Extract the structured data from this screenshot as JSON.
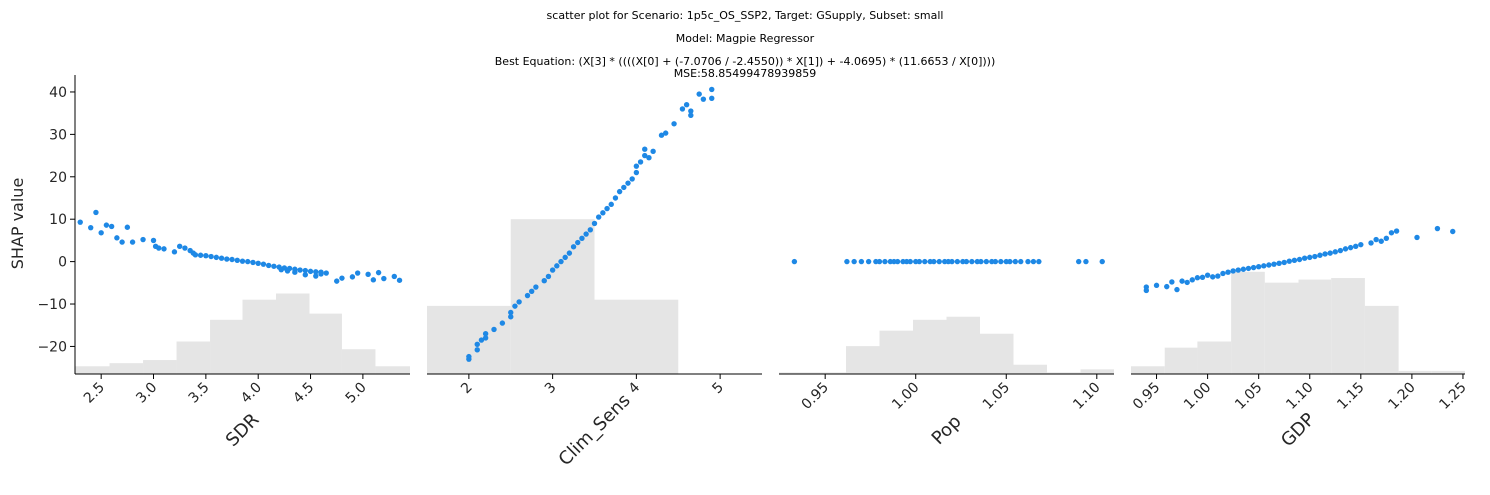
{
  "header": {
    "title_line1": "scatter plot for Scenario: 1p5c_OS_SSP2, Target: GSupply, Subset: small",
    "title_line2": "Model: Magpie Regressor",
    "title_line3": "Best Equation: (X[3] * ((((X[0] + (-7.0706 / -2.4550)) * X[1]) + -4.0695) * (11.6653 / X[0])))",
    "title_line4": "MSE:58.85499478939859"
  },
  "colors": {
    "points": "#1e88e5",
    "hist": "#e5e5e5",
    "axis": "#000000"
  },
  "chart_data": [
    {
      "type": "scatter",
      "xlabel": "SDR",
      "ylabel": "SHAP value",
      "xlim": [
        2.25,
        5.45
      ],
      "ylim": [
        -26.5,
        44
      ],
      "xticks": [
        2.5,
        3.0,
        3.5,
        4.0,
        4.5,
        5.0
      ],
      "xtick_labels": [
        "2.5",
        "3.0",
        "3.5",
        "4.0",
        "4.5",
        "5.0"
      ],
      "yticks": [
        -20,
        -10,
        0,
        10,
        20,
        30,
        40
      ],
      "ytick_labels": [
        "−20",
        "−10",
        "0",
        "10",
        "20",
        "30",
        "40"
      ],
      "points": [
        [
          2.3,
          9.3
        ],
        [
          2.4,
          8.0
        ],
        [
          2.45,
          11.6
        ],
        [
          2.5,
          6.8
        ],
        [
          2.55,
          8.6
        ],
        [
          2.6,
          8.3
        ],
        [
          2.65,
          5.6
        ],
        [
          2.7,
          4.6
        ],
        [
          2.8,
          4.6
        ],
        [
          2.75,
          8.1
        ],
        [
          2.9,
          5.2
        ],
        [
          3.0,
          5.0
        ],
        [
          3.02,
          3.6
        ],
        [
          3.05,
          3.2
        ],
        [
          3.1,
          3.0
        ],
        [
          3.2,
          2.3
        ],
        [
          3.25,
          3.6
        ],
        [
          3.3,
          3.2
        ],
        [
          3.35,
          2.6
        ],
        [
          3.38,
          2.0
        ],
        [
          3.4,
          1.6
        ],
        [
          3.45,
          1.5
        ],
        [
          3.5,
          1.4
        ],
        [
          3.55,
          1.2
        ],
        [
          3.6,
          1.0
        ],
        [
          3.65,
          0.8
        ],
        [
          3.7,
          0.6
        ],
        [
          3.75,
          0.5
        ],
        [
          3.8,
          0.3
        ],
        [
          3.85,
          0.1
        ],
        [
          3.9,
          0.0
        ],
        [
          3.95,
          -0.2
        ],
        [
          4.0,
          -0.4
        ],
        [
          4.05,
          -0.6
        ],
        [
          4.1,
          -0.9
        ],
        [
          4.15,
          -1.1
        ],
        [
          4.2,
          -1.3
        ],
        [
          4.25,
          -1.5
        ],
        [
          4.3,
          -1.6
        ],
        [
          4.35,
          -1.8
        ],
        [
          4.4,
          -2.0
        ],
        [
          4.45,
          -2.1
        ],
        [
          4.5,
          -2.3
        ],
        [
          4.55,
          -2.4
        ],
        [
          4.6,
          -2.5
        ],
        [
          4.65,
          -2.7
        ],
        [
          4.22,
          -1.9
        ],
        [
          4.28,
          -2.2
        ],
        [
          4.35,
          -2.5
        ],
        [
          4.45,
          -3.1
        ],
        [
          4.55,
          -3.4
        ],
        [
          4.6,
          -2.9
        ],
        [
          4.75,
          -4.6
        ],
        [
          4.8,
          -3.9
        ],
        [
          4.9,
          -3.6
        ],
        [
          4.95,
          -2.7
        ],
        [
          5.05,
          -3.0
        ],
        [
          5.1,
          -4.3
        ],
        [
          5.15,
          -2.6
        ],
        [
          5.2,
          -4.0
        ],
        [
          5.3,
          -3.5
        ],
        [
          5.35,
          -4.4
        ]
      ],
      "histogram": {
        "edges": [
          2.25,
          2.58,
          2.9,
          3.22,
          3.54,
          3.85,
          4.17,
          4.49,
          4.8,
          5.12,
          5.45
        ],
        "heights": [
          0.05,
          0.07,
          0.09,
          0.21,
          0.35,
          0.48,
          0.52,
          0.39,
          0.16,
          0.05
        ]
      }
    },
    {
      "type": "scatter",
      "xlabel": "Clim_Sens",
      "xlim": [
        1.5,
        5.5
      ],
      "ylim": [
        -26.5,
        44
      ],
      "xticks": [
        2,
        3,
        4,
        5
      ],
      "xtick_labels": [
        "2",
        "3",
        "4",
        "5"
      ],
      "points": [
        [
          2.0,
          -23.0
        ],
        [
          2.0,
          -22.4
        ],
        [
          2.1,
          -20.8
        ],
        [
          2.1,
          -19.5
        ],
        [
          2.15,
          -18.5
        ],
        [
          2.2,
          -18.0
        ],
        [
          2.2,
          -17.0
        ],
        [
          2.3,
          -16.0
        ],
        [
          2.4,
          -14.5
        ],
        [
          2.5,
          -13.0
        ],
        [
          2.5,
          -12.0
        ],
        [
          2.55,
          -10.5
        ],
        [
          2.6,
          -9.5
        ],
        [
          2.7,
          -8.0
        ],
        [
          2.75,
          -7.0
        ],
        [
          2.8,
          -6.0
        ],
        [
          2.9,
          -4.5
        ],
        [
          2.95,
          -3.5
        ],
        [
          3.0,
          -2.0
        ],
        [
          3.05,
          -1.0
        ],
        [
          3.1,
          0.0
        ],
        [
          3.15,
          1.0
        ],
        [
          3.2,
          2.0
        ],
        [
          3.25,
          3.5
        ],
        [
          3.3,
          4.5
        ],
        [
          3.35,
          5.5
        ],
        [
          3.4,
          6.5
        ],
        [
          3.45,
          7.5
        ],
        [
          3.5,
          9.0
        ],
        [
          3.55,
          10.5
        ],
        [
          3.6,
          11.5
        ],
        [
          3.65,
          12.5
        ],
        [
          3.7,
          13.5
        ],
        [
          3.75,
          15.0
        ],
        [
          3.8,
          16.5
        ],
        [
          3.85,
          17.5
        ],
        [
          3.9,
          18.5
        ],
        [
          3.95,
          19.5
        ],
        [
          4.0,
          21.0
        ],
        [
          4.0,
          22.5
        ],
        [
          4.05,
          23.5
        ],
        [
          4.1,
          25.0
        ],
        [
          4.1,
          26.5
        ],
        [
          4.15,
          24.5
        ],
        [
          4.2,
          26.0
        ],
        [
          4.3,
          29.8
        ],
        [
          4.35,
          30.3
        ],
        [
          4.45,
          32.5
        ],
        [
          4.55,
          36.0
        ],
        [
          4.6,
          37.0
        ],
        [
          4.65,
          34.5
        ],
        [
          4.65,
          35.5
        ],
        [
          4.75,
          39.5
        ],
        [
          4.8,
          38.3
        ],
        [
          4.9,
          40.6
        ],
        [
          4.9,
          38.5
        ]
      ],
      "histogram": {
        "edges": [
          1.5,
          2.5,
          3.5,
          4.5,
          5.5
        ],
        "heights": [
          0.44,
          1.0,
          0.48,
          0.0
        ]
      }
    },
    {
      "type": "scatter",
      "xlabel": "Pop",
      "xlim": [
        0.9245,
        1.1095
      ],
      "ylim": [
        -26.5,
        44
      ],
      "xticks": [
        0.95,
        1.0,
        1.05,
        1.1
      ],
      "xtick_labels": [
        "0.95",
        "1.00",
        "1.05",
        "1.10"
      ],
      "points": [
        [
          0.933,
          0
        ],
        [
          0.962,
          0
        ],
        [
          0.966,
          0
        ],
        [
          0.97,
          0
        ],
        [
          0.974,
          0
        ],
        [
          0.978,
          0
        ],
        [
          0.98,
          0
        ],
        [
          0.983,
          0
        ],
        [
          0.986,
          0
        ],
        [
          0.988,
          0
        ],
        [
          0.99,
          0
        ],
        [
          0.993,
          0
        ],
        [
          0.995,
          0
        ],
        [
          0.997,
          0
        ],
        [
          1.0,
          0
        ],
        [
          1.002,
          0
        ],
        [
          1.005,
          0
        ],
        [
          1.008,
          0
        ],
        [
          1.01,
          0
        ],
        [
          1.013,
          0
        ],
        [
          1.016,
          0
        ],
        [
          1.018,
          0
        ],
        [
          1.02,
          0
        ],
        [
          1.023,
          0
        ],
        [
          1.026,
          0
        ],
        [
          1.028,
          0
        ],
        [
          1.031,
          0
        ],
        [
          1.034,
          0
        ],
        [
          1.036,
          0
        ],
        [
          1.039,
          0
        ],
        [
          1.042,
          0
        ],
        [
          1.044,
          0
        ],
        [
          1.047,
          0
        ],
        [
          1.05,
          0
        ],
        [
          1.052,
          0
        ],
        [
          1.055,
          0
        ],
        [
          1.058,
          0
        ],
        [
          1.062,
          0
        ],
        [
          1.065,
          0
        ],
        [
          1.068,
          0
        ],
        [
          1.09,
          0
        ],
        [
          1.094,
          0
        ],
        [
          1.103,
          0
        ]
      ],
      "histogram": {
        "edges": [
          0.9245,
          0.943,
          0.9615,
          0.98,
          0.9985,
          1.017,
          1.0355,
          1.054,
          1.0725,
          1.091,
          1.1095
        ],
        "heights": [
          0.01,
          0.01,
          0.18,
          0.28,
          0.35,
          0.37,
          0.26,
          0.06,
          0.01,
          0.03
        ]
      }
    },
    {
      "type": "scatter",
      "xlabel": "GDP",
      "xlim": [
        0.925,
        1.252
      ],
      "ylim": [
        -26.5,
        44
      ],
      "xticks": [
        0.95,
        1.0,
        1.05,
        1.1,
        1.15,
        1.2,
        1.25
      ],
      "xtick_labels": [
        "0.95",
        "1.00",
        "1.05",
        "1.10",
        "1.15",
        "1.20",
        "1.25"
      ],
      "points": [
        [
          0.94,
          -6.8
        ],
        [
          0.94,
          -6.0
        ],
        [
          0.95,
          -5.6
        ],
        [
          0.96,
          -5.9
        ],
        [
          0.965,
          -4.8
        ],
        [
          0.97,
          -6.6
        ],
        [
          0.975,
          -4.6
        ],
        [
          0.98,
          -4.9
        ],
        [
          0.985,
          -4.3
        ],
        [
          0.99,
          -3.8
        ],
        [
          0.995,
          -3.7
        ],
        [
          1.0,
          -3.2
        ],
        [
          1.005,
          -3.6
        ],
        [
          1.01,
          -3.4
        ],
        [
          1.015,
          -2.8
        ],
        [
          1.02,
          -2.5
        ],
        [
          1.025,
          -2.2
        ],
        [
          1.03,
          -2.0
        ],
        [
          1.035,
          -1.8
        ],
        [
          1.04,
          -1.6
        ],
        [
          1.045,
          -1.4
        ],
        [
          1.05,
          -1.2
        ],
        [
          1.055,
          -1.0
        ],
        [
          1.06,
          -0.8
        ],
        [
          1.065,
          -0.6
        ],
        [
          1.07,
          -0.4
        ],
        [
          1.075,
          -0.2
        ],
        [
          1.08,
          0.1
        ],
        [
          1.085,
          0.3
        ],
        [
          1.09,
          0.5
        ],
        [
          1.095,
          0.8
        ],
        [
          1.1,
          1.0
        ],
        [
          1.105,
          1.2
        ],
        [
          1.11,
          1.5
        ],
        [
          1.115,
          1.8
        ],
        [
          1.12,
          2.0
        ],
        [
          1.125,
          2.3
        ],
        [
          1.13,
          2.6
        ],
        [
          1.135,
          3.0
        ],
        [
          1.14,
          3.3
        ],
        [
          1.145,
          3.6
        ],
        [
          1.15,
          4.0
        ],
        [
          1.16,
          4.4
        ],
        [
          1.165,
          5.2
        ],
        [
          1.17,
          4.8
        ],
        [
          1.175,
          5.5
        ],
        [
          1.18,
          6.8
        ],
        [
          1.185,
          7.2
        ],
        [
          1.205,
          5.7
        ],
        [
          1.225,
          7.8
        ],
        [
          1.24,
          7.1
        ]
      ],
      "histogram": {
        "edges": [
          0.925,
          0.958,
          0.99,
          1.023,
          1.056,
          1.089,
          1.121,
          1.154,
          1.187,
          1.219,
          1.252
        ],
        "heights": [
          0.05,
          0.17,
          0.21,
          0.66,
          0.59,
          0.61,
          0.62,
          0.44,
          0.02,
          0.02
        ]
      }
    }
  ]
}
